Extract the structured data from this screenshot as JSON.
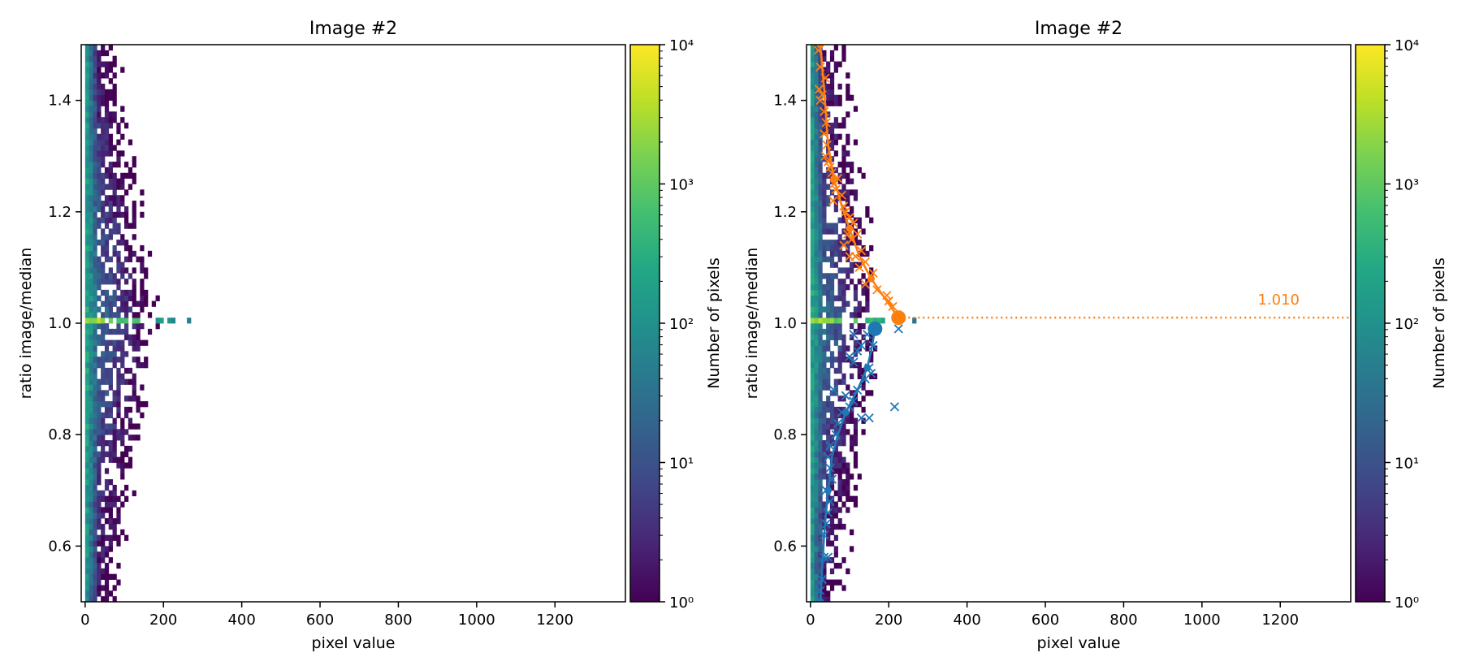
{
  "colors": {
    "orange": "#ff7f0e",
    "blue": "#1f77b4",
    "viridis": [
      "#440154",
      "#482475",
      "#414487",
      "#355f8d",
      "#2a788e",
      "#21918c",
      "#22a884",
      "#44bf70",
      "#7ad151",
      "#bddf26",
      "#fde725"
    ]
  },
  "chart_data": [
    {
      "type": "heatmap",
      "title": "Image #2",
      "xlabel": "pixel value",
      "ylabel": "ratio image/median",
      "xlim": [
        -10,
        1380
      ],
      "ylim": [
        0.5,
        1.5
      ],
      "xticks": [
        "0",
        "200",
        "400",
        "600",
        "800",
        "1000",
        "1200"
      ],
      "yticks": [
        "0.6",
        "0.8",
        "1.0",
        "1.2",
        "1.4"
      ],
      "colorbar": {
        "label": "Number of pixels",
        "scale": "log",
        "range": [
          1,
          10000
        ],
        "ticks": [
          "10⁰",
          "10¹",
          "10²",
          "10³",
          "10⁴"
        ]
      }
    },
    {
      "type": "heatmap",
      "title": "Image #2",
      "xlabel": "pixel value",
      "ylabel": "ratio image/median",
      "xlim": [
        -10,
        1380
      ],
      "ylim": [
        0.5,
        1.5
      ],
      "xticks": [
        "0",
        "200",
        "400",
        "600",
        "800",
        "1000",
        "1200"
      ],
      "yticks": [
        "0.6",
        "0.8",
        "1.0",
        "1.2",
        "1.4"
      ],
      "colorbar": {
        "label": "Number of pixels",
        "scale": "log",
        "range": [
          1,
          10000
        ],
        "ticks": [
          "10⁰",
          "10¹",
          "10²",
          "10³",
          "10⁴"
        ]
      },
      "hline": {
        "y": 1.01,
        "label": "1.010",
        "style": "dotted"
      },
      "upper_curve": [
        [
          25,
          1.5
        ],
        [
          35,
          1.42
        ],
        [
          45,
          1.32
        ],
        [
          60,
          1.26
        ],
        [
          80,
          1.21
        ],
        [
          100,
          1.17
        ],
        [
          125,
          1.12
        ],
        [
          155,
          1.08
        ],
        [
          185,
          1.05
        ],
        [
          210,
          1.025
        ],
        [
          225,
          1.01
        ]
      ],
      "upper_curve_points": [
        [
          25,
          1.5
        ],
        [
          60,
          1.26
        ],
        [
          100,
          1.17
        ],
        [
          155,
          1.08
        ],
        [
          225,
          1.01
        ]
      ],
      "upper_peak": [
        225,
        1.01
      ],
      "upper_scatter": [
        [
          20,
          1.49
        ],
        [
          25,
          1.46
        ],
        [
          38,
          1.44
        ],
        [
          22,
          1.42
        ],
        [
          30,
          1.41
        ],
        [
          25,
          1.4
        ],
        [
          35,
          1.38
        ],
        [
          40,
          1.36
        ],
        [
          35,
          1.34
        ],
        [
          42,
          1.32
        ],
        [
          38,
          1.3
        ],
        [
          45,
          1.29
        ],
        [
          50,
          1.28
        ],
        [
          55,
          1.27
        ],
        [
          60,
          1.25
        ],
        [
          65,
          1.24
        ],
        [
          70,
          1.26
        ],
        [
          58,
          1.22
        ],
        [
          80,
          1.23
        ],
        [
          85,
          1.21
        ],
        [
          90,
          1.2
        ],
        [
          100,
          1.19
        ],
        [
          95,
          1.16
        ],
        [
          110,
          1.18
        ],
        [
          105,
          1.15
        ],
        [
          120,
          1.16
        ],
        [
          85,
          1.14
        ],
        [
          115,
          1.12
        ],
        [
          130,
          1.13
        ],
        [
          140,
          1.11
        ],
        [
          125,
          1.1
        ],
        [
          100,
          1.12
        ],
        [
          160,
          1.09
        ],
        [
          140,
          1.07
        ],
        [
          170,
          1.06
        ],
        [
          195,
          1.05
        ],
        [
          200,
          1.04
        ],
        [
          210,
          1.03
        ]
      ],
      "lower_curve": [
        [
          25,
          0.5
        ],
        [
          30,
          0.56
        ],
        [
          35,
          0.62
        ],
        [
          45,
          0.7
        ],
        [
          55,
          0.76
        ],
        [
          70,
          0.8
        ],
        [
          90,
          0.84
        ],
        [
          120,
          0.88
        ],
        [
          145,
          0.92
        ],
        [
          155,
          0.95
        ],
        [
          165,
          0.99
        ]
      ],
      "lower_curve_points": [
        [
          25,
          0.5
        ],
        [
          45,
          0.7
        ],
        [
          90,
          0.84
        ],
        [
          145,
          0.92
        ],
        [
          165,
          0.99
        ]
      ],
      "lower_peak": [
        165,
        0.99
      ],
      "lower_scatter": [
        [
          25,
          0.52
        ],
        [
          30,
          0.54
        ],
        [
          35,
          0.58
        ],
        [
          45,
          0.58
        ],
        [
          35,
          0.62
        ],
        [
          40,
          0.64
        ],
        [
          45,
          0.66
        ],
        [
          50,
          0.68
        ],
        [
          40,
          0.7
        ],
        [
          55,
          0.72
        ],
        [
          50,
          0.74
        ],
        [
          45,
          0.76
        ],
        [
          50,
          0.78
        ],
        [
          65,
          0.8
        ],
        [
          70,
          0.82
        ],
        [
          80,
          0.84
        ],
        [
          100,
          0.85
        ],
        [
          130,
          0.83
        ],
        [
          150,
          0.83
        ],
        [
          90,
          0.87
        ],
        [
          110,
          0.86
        ],
        [
          60,
          0.88
        ],
        [
          120,
          0.88
        ],
        [
          140,
          0.9
        ],
        [
          155,
          0.91
        ],
        [
          110,
          0.93
        ],
        [
          150,
          0.92
        ],
        [
          100,
          0.94
        ],
        [
          120,
          0.95
        ],
        [
          130,
          0.96
        ],
        [
          110,
          0.98
        ],
        [
          160,
          0.96
        ],
        [
          145,
          0.98
        ],
        [
          215,
          0.85
        ],
        [
          225,
          0.99
        ]
      ]
    }
  ]
}
